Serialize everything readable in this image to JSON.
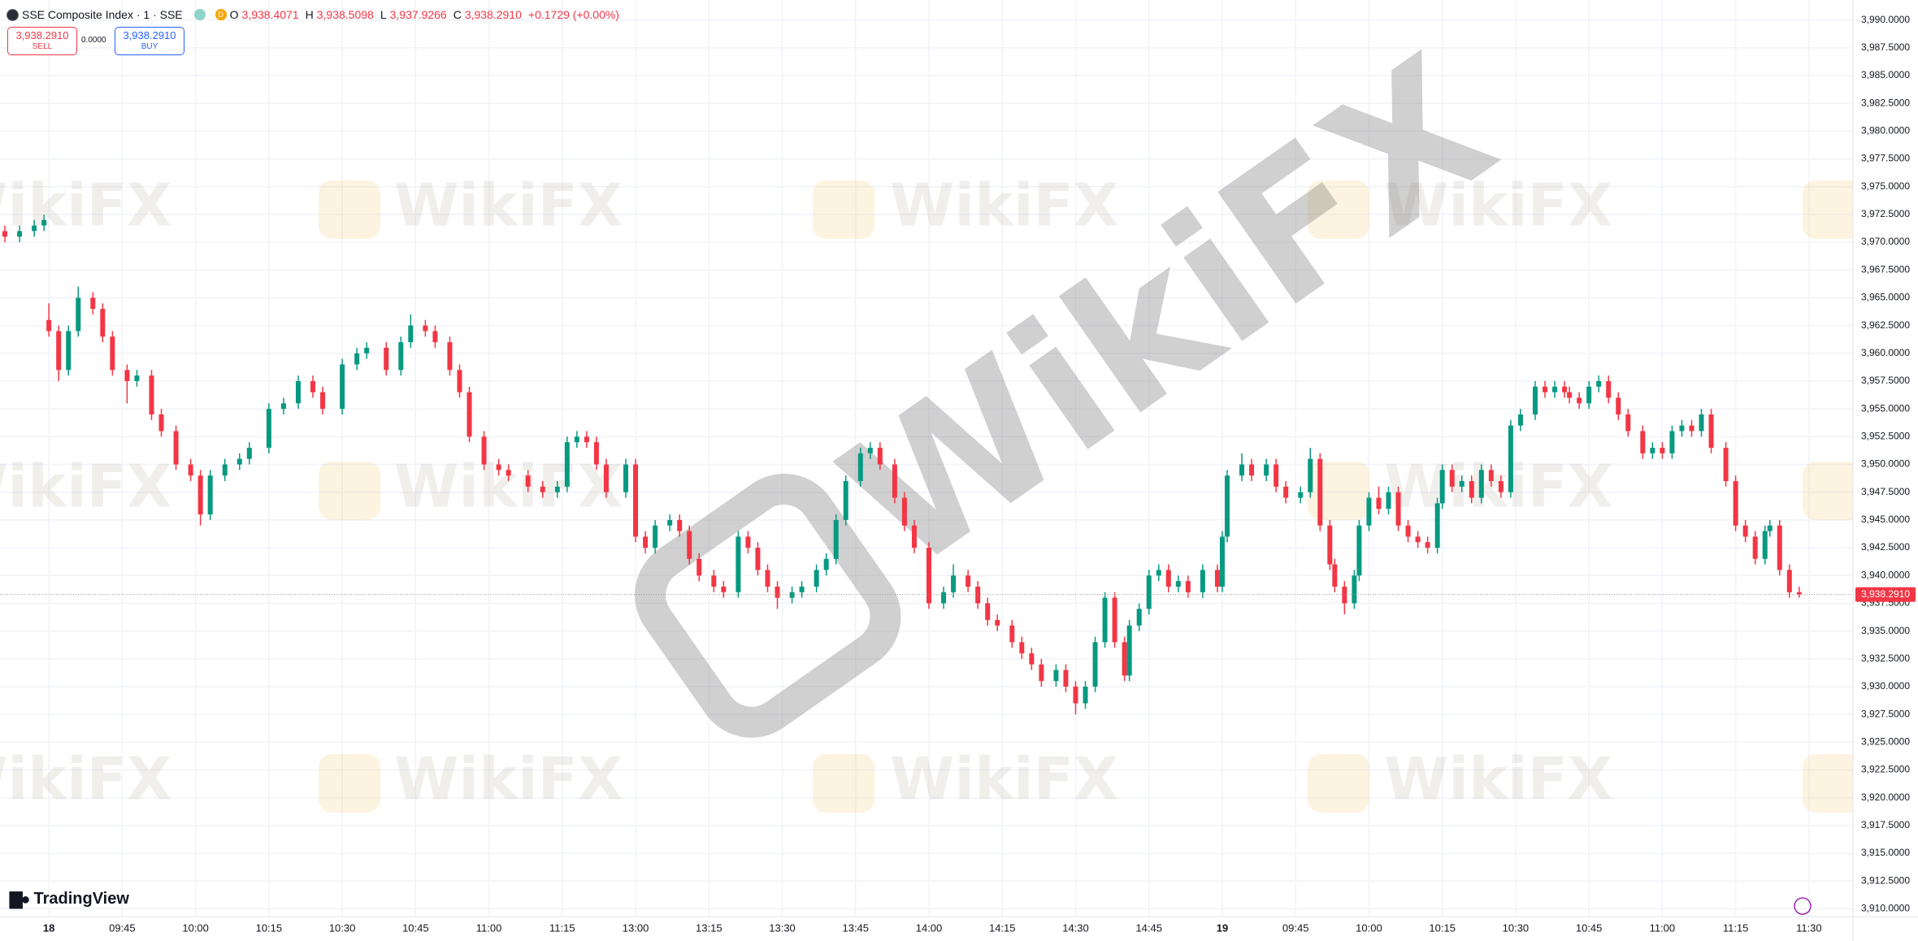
{
  "header": {
    "symbol": "SSE Composite Index · 1 · SSE",
    "badge": "D",
    "ohlc": [
      {
        "key": "O",
        "text": "3,938.4071"
      },
      {
        "key": "H",
        "text": "3,938.5098"
      },
      {
        "key": "L",
        "text": "3,937.9266"
      },
      {
        "key": "C",
        "text": "3,938.2910"
      }
    ],
    "change": "+0.1729 (+0.00%)"
  },
  "trade": {
    "sell_price": "3,938.2910",
    "sell_label": "SELL",
    "spread": "0.0000",
    "buy_price": "3,938.2910",
    "buy_label": "BUY"
  },
  "brand": "TradingView",
  "watermark": "WikiFX",
  "chart_data": {
    "type": "candlestick",
    "up_color": "#089981",
    "down_color": "#f23645",
    "xlim": [
      -10,
      369
    ],
    "ylim": [
      3909.3,
      3991.8
    ],
    "grid": true,
    "last_price": {
      "value": 3938.291,
      "label": "3,938.2910"
    },
    "xticks": [
      {
        "value": 0,
        "label": "18"
      },
      {
        "value": 15,
        "label": "09:45"
      },
      {
        "value": 30,
        "label": "10:00"
      },
      {
        "value": 45,
        "label": "10:15"
      },
      {
        "value": 60,
        "label": "10:30"
      },
      {
        "value": 75,
        "label": "10:45"
      },
      {
        "value": 90,
        "label": "11:00"
      },
      {
        "value": 105,
        "label": "11:15"
      },
      {
        "value": 120,
        "label": "13:00"
      },
      {
        "value": 135,
        "label": "13:15"
      },
      {
        "value": 150,
        "label": "13:30"
      },
      {
        "value": 165,
        "label": "13:45"
      },
      {
        "value": 180,
        "label": "14:00"
      },
      {
        "value": 195,
        "label": "14:15"
      },
      {
        "value": 210,
        "label": "14:30"
      },
      {
        "value": 225,
        "label": "14:45"
      },
      {
        "value": 240,
        "label": "19"
      },
      {
        "value": 255,
        "label": "09:45"
      },
      {
        "value": 270,
        "label": "10:00"
      },
      {
        "value": 285,
        "label": "10:15"
      },
      {
        "value": 300,
        "label": "10:30"
      },
      {
        "value": 315,
        "label": "10:45"
      },
      {
        "value": 330,
        "label": "11:00"
      },
      {
        "value": 345,
        "label": "11:15"
      },
      {
        "value": 360,
        "label": "11:30"
      }
    ],
    "yticks": [
      {
        "value": 3910,
        "label": "3,910.0000"
      },
      {
        "value": 3912.5,
        "label": "3,912.5000"
      },
      {
        "value": 3915,
        "label": "3,915.0000"
      },
      {
        "value": 3917.5,
        "label": "3,917.5000"
      },
      {
        "value": 3920,
        "label": "3,920.0000"
      },
      {
        "value": 3922.5,
        "label": "3,922.5000"
      },
      {
        "value": 3925,
        "label": "3,925.0000"
      },
      {
        "value": 3927.5,
        "label": "3,927.5000"
      },
      {
        "value": 3930,
        "label": "3,930.0000"
      },
      {
        "value": 3932.5,
        "label": "3,932.5000"
      },
      {
        "value": 3935,
        "label": "3,935.0000"
      },
      {
        "value": 3937.5,
        "label": "3,937.5000"
      },
      {
        "value": 3940,
        "label": "3,940.0000"
      },
      {
        "value": 3942.5,
        "label": "3,942.5000"
      },
      {
        "value": 3945,
        "label": "3,945.0000"
      },
      {
        "value": 3947.5,
        "label": "3,947.5000"
      },
      {
        "value": 3950,
        "label": "3,950.0000"
      },
      {
        "value": 3952.5,
        "label": "3,952.5000"
      },
      {
        "value": 3955,
        "label": "3,955.0000"
      },
      {
        "value": 3957.5,
        "label": "3,957.5000"
      },
      {
        "value": 3960,
        "label": "3,960.0000"
      },
      {
        "value": 3962.5,
        "label": "3,962.5000"
      },
      {
        "value": 3965,
        "label": "3,965.0000"
      },
      {
        "value": 3967.5,
        "label": "3,967.5000"
      },
      {
        "value": 3970,
        "label": "3,970.0000"
      },
      {
        "value": 3972.5,
        "label": "3,972.5000"
      },
      {
        "value": 3975,
        "label": "3,975.0000"
      },
      {
        "value": 3977.5,
        "label": "3,977.5000"
      },
      {
        "value": 3980,
        "label": "3,980.0000"
      },
      {
        "value": 3982.5,
        "label": "3,982.5000"
      },
      {
        "value": 3985,
        "label": "3,985.0000"
      },
      {
        "value": 3987.5,
        "label": "3,987.5000"
      },
      {
        "value": 3990,
        "label": "3,990.0000"
      }
    ],
    "candles": [
      [
        -9,
        3971,
        3971.5,
        3970,
        3970.5
      ],
      [
        -6,
        3970.5,
        3971.5,
        3970,
        3971
      ],
      [
        -3,
        3971,
        3972,
        3970.5,
        3971.5
      ],
      [
        -1,
        3971.5,
        3972.5,
        3971,
        3972
      ],
      [
        0,
        3963,
        3964.5,
        3961.5,
        3962
      ],
      [
        2,
        3962,
        3962.5,
        3957.5,
        3958.5
      ],
      [
        4,
        3958.5,
        3962.5,
        3958,
        3962
      ],
      [
        6,
        3962,
        3966,
        3961.5,
        3965
      ],
      [
        9,
        3965,
        3965.5,
        3963.5,
        3964
      ],
      [
        11,
        3964,
        3964.5,
        3961,
        3961.5
      ],
      [
        13,
        3961.5,
        3962,
        3958,
        3958.5
      ],
      [
        16,
        3958.5,
        3959,
        3955.5,
        3957.5
      ],
      [
        18,
        3957.5,
        3958.5,
        3957,
        3958
      ],
      [
        21,
        3958,
        3958.5,
        3954,
        3954.5
      ],
      [
        23,
        3954.5,
        3955,
        3952.5,
        3953
      ],
      [
        26,
        3953,
        3953.5,
        3949.5,
        3950
      ],
      [
        29,
        3950,
        3950.5,
        3948.5,
        3949
      ],
      [
        31,
        3949,
        3949.5,
        3944.5,
        3945.5
      ],
      [
        33,
        3945.5,
        3949.5,
        3945,
        3949
      ],
      [
        36,
        3949,
        3950.5,
        3948.5,
        3950
      ],
      [
        39,
        3950,
        3951,
        3949.5,
        3950.5
      ],
      [
        41,
        3950.5,
        3952,
        3950,
        3951.5
      ],
      [
        45,
        3951.5,
        3955.5,
        3951,
        3955
      ],
      [
        48,
        3955,
        3956,
        3954.5,
        3955.5
      ],
      [
        51,
        3955.5,
        3958,
        3955,
        3957.5
      ],
      [
        54,
        3957.5,
        3958,
        3956,
        3956.5
      ],
      [
        56,
        3956.5,
        3957,
        3954.5,
        3955
      ],
      [
        60,
        3955,
        3959.5,
        3954.5,
        3959
      ],
      [
        63,
        3959,
        3960.5,
        3958.5,
        3960
      ],
      [
        65,
        3960,
        3961,
        3959.5,
        3960.5
      ],
      [
        69,
        3960.5,
        3961,
        3958,
        3958.5
      ],
      [
        72,
        3958.5,
        3961.5,
        3958,
        3961
      ],
      [
        74,
        3961,
        3963.5,
        3960.5,
        3962.5
      ],
      [
        77,
        3962.5,
        3963,
        3961.5,
        3962
      ],
      [
        79,
        3962,
        3962.5,
        3960.5,
        3961
      ],
      [
        82,
        3961,
        3961.5,
        3958,
        3958.5
      ],
      [
        84,
        3958.5,
        3959,
        3956,
        3956.5
      ],
      [
        86,
        3956.5,
        3957,
        3952,
        3952.5
      ],
      [
        89,
        3952.5,
        3953,
        3949.5,
        3950
      ],
      [
        92,
        3950,
        3950.5,
        3949,
        3949.5
      ],
      [
        94,
        3949.5,
        3950,
        3948.5,
        3949
      ],
      [
        98,
        3949,
        3949.5,
        3947.5,
        3948
      ],
      [
        101,
        3948,
        3948.5,
        3947,
        3947.5
      ],
      [
        104,
        3947.5,
        3948.5,
        3947,
        3948
      ],
      [
        106,
        3948,
        3952.5,
        3947.5,
        3952
      ],
      [
        108,
        3952,
        3953,
        3951.5,
        3952.5
      ],
      [
        110,
        3952.5,
        3953,
        3951.5,
        3952
      ],
      [
        112,
        3952,
        3952.5,
        3949.5,
        3950
      ],
      [
        114,
        3950,
        3950.5,
        3947,
        3947.5
      ],
      [
        118,
        3947.5,
        3950.5,
        3947,
        3950
      ],
      [
        120,
        3950,
        3950.5,
        3943,
        3943.5
      ],
      [
        122,
        3943.5,
        3944,
        3942,
        3942.5
      ],
      [
        124,
        3942.5,
        3945,
        3942,
        3944.5
      ],
      [
        127,
        3944.5,
        3945.5,
        3944,
        3945
      ],
      [
        129,
        3945,
        3945.5,
        3943.5,
        3944
      ],
      [
        131,
        3944,
        3944.5,
        3941,
        3941.5
      ],
      [
        133,
        3941.5,
        3942,
        3939.5,
        3940
      ],
      [
        136,
        3940,
        3940.5,
        3938.5,
        3939
      ],
      [
        138,
        3939,
        3939.5,
        3938,
        3938.5
      ],
      [
        141,
        3938.5,
        3944,
        3938,
        3943.5
      ],
      [
        143,
        3943.5,
        3944,
        3942,
        3942.5
      ],
      [
        145,
        3942.5,
        3943,
        3940,
        3940.5
      ],
      [
        147,
        3940.5,
        3941,
        3938.5,
        3939
      ],
      [
        149,
        3939,
        3939.5,
        3937,
        3938
      ],
      [
        152,
        3938,
        3939,
        3937.5,
        3938.5
      ],
      [
        154,
        3938.5,
        3939.5,
        3938,
        3939
      ],
      [
        157,
        3939,
        3941,
        3938.5,
        3940.5
      ],
      [
        159,
        3940.5,
        3942,
        3940,
        3941.5
      ],
      [
        161,
        3941.5,
        3945.5,
        3941,
        3945
      ],
      [
        163,
        3945,
        3949,
        3944.5,
        3948.5
      ],
      [
        166,
        3948.5,
        3951.5,
        3948,
        3951
      ],
      [
        168,
        3951,
        3952,
        3950.5,
        3951.5
      ],
      [
        170,
        3951.5,
        3952,
        3949.5,
        3950
      ],
      [
        173,
        3950,
        3950.5,
        3946.5,
        3947
      ],
      [
        175,
        3947,
        3947.5,
        3944,
        3944.5
      ],
      [
        177,
        3944.5,
        3945,
        3942,
        3942.5
      ],
      [
        180,
        3942.5,
        3943,
        3937,
        3937.5
      ],
      [
        183,
        3937.5,
        3939,
        3937,
        3938.5
      ],
      [
        185,
        3938.5,
        3941,
        3938,
        3940
      ],
      [
        188,
        3940,
        3940.5,
        3938.5,
        3939
      ],
      [
        190,
        3939,
        3939.5,
        3937,
        3937.5
      ],
      [
        192,
        3937.5,
        3938,
        3935.5,
        3936
      ],
      [
        194,
        3936,
        3936.5,
        3935,
        3935.5
      ],
      [
        197,
        3935.5,
        3936,
        3933.5,
        3934
      ],
      [
        199,
        3934,
        3934.5,
        3932.5,
        3933
      ],
      [
        201,
        3933,
        3933.5,
        3931.5,
        3932
      ],
      [
        203,
        3932,
        3932.5,
        3930,
        3930.5
      ],
      [
        206,
        3930.5,
        3932,
        3930,
        3931.5
      ],
      [
        208,
        3931.5,
        3932,
        3929.5,
        3930
      ],
      [
        210,
        3930,
        3930.5,
        3927.5,
        3928.5
      ],
      [
        212,
        3928.5,
        3930.5,
        3928,
        3930
      ],
      [
        214,
        3930,
        3934.5,
        3929.5,
        3934
      ],
      [
        216,
        3934,
        3938.5,
        3933.5,
        3938
      ],
      [
        218,
        3938,
        3938.5,
        3933.5,
        3934
      ],
      [
        220,
        3934,
        3934.5,
        3930.5,
        3931
      ],
      [
        221,
        3931,
        3936,
        3930.5,
        3935.5
      ],
      [
        223,
        3935.5,
        3937.5,
        3935,
        3937
      ],
      [
        225,
        3937,
        3940.5,
        3936.5,
        3940
      ],
      [
        227,
        3940,
        3941,
        3939.5,
        3940.5
      ],
      [
        229,
        3940.5,
        3941,
        3938.5,
        3939
      ],
      [
        231,
        3939,
        3940,
        3938.5,
        3939.5
      ],
      [
        233,
        3939.5,
        3940,
        3938,
        3938.5
      ],
      [
        236,
        3938.5,
        3941,
        3938,
        3940.5
      ],
      [
        239,
        3940.5,
        3941,
        3938.5,
        3939
      ],
      [
        240,
        3939,
        3944,
        3938.5,
        3943.5
      ],
      [
        241,
        3943.5,
        3949.5,
        3943,
        3949
      ],
      [
        244,
        3949,
        3951,
        3948.5,
        3950
      ],
      [
        246,
        3950,
        3950.5,
        3948.5,
        3949
      ],
      [
        249,
        3949,
        3950.5,
        3948.5,
        3950
      ],
      [
        251,
        3950,
        3950.5,
        3947.5,
        3948
      ],
      [
        253,
        3948,
        3948.5,
        3946.5,
        3947
      ],
      [
        256,
        3947,
        3948,
        3946.5,
        3947.5
      ],
      [
        258,
        3947.5,
        3951.5,
        3947,
        3950.5
      ],
      [
        260,
        3950.5,
        3951,
        3944,
        3944.5
      ],
      [
        262,
        3944.5,
        3945,
        3940.5,
        3941
      ],
      [
        263,
        3941,
        3941.5,
        3938.5,
        3939
      ],
      [
        265,
        3939,
        3939.5,
        3936.5,
        3937.5
      ],
      [
        267,
        3937.5,
        3940.5,
        3937,
        3940
      ],
      [
        268,
        3940,
        3945,
        3939.5,
        3944.5
      ],
      [
        270,
        3944.5,
        3947.5,
        3944,
        3947
      ],
      [
        272,
        3947,
        3948,
        3945.5,
        3946
      ],
      [
        274,
        3946,
        3948,
        3945.5,
        3947.5
      ],
      [
        276,
        3947.5,
        3948,
        3944,
        3944.5
      ],
      [
        278,
        3944.5,
        3945,
        3943,
        3943.5
      ],
      [
        280,
        3943.5,
        3944,
        3942.5,
        3943
      ],
      [
        282,
        3943,
        3943.5,
        3942,
        3942.5
      ],
      [
        284,
        3942.5,
        3947,
        3942,
        3946.5
      ],
      [
        285,
        3946.5,
        3950,
        3946,
        3949.5
      ],
      [
        287,
        3949.5,
        3950,
        3947.5,
        3948
      ],
      [
        289,
        3948,
        3949,
        3947.5,
        3948.5
      ],
      [
        291,
        3948.5,
        3949,
        3946.5,
        3947
      ],
      [
        293,
        3947,
        3950,
        3946.5,
        3949.5
      ],
      [
        295,
        3949.5,
        3950,
        3948,
        3948.5
      ],
      [
        297,
        3948.5,
        3949,
        3947,
        3947.5
      ],
      [
        299,
        3947.5,
        3954,
        3947,
        3953.5
      ],
      [
        301,
        3953.5,
        3955,
        3953,
        3954.5
      ],
      [
        304,
        3954.5,
        3957.5,
        3954,
        3957
      ],
      [
        306,
        3957,
        3957.5,
        3956,
        3956.5
      ],
      [
        308,
        3956.5,
        3957.5,
        3956,
        3957
      ],
      [
        310,
        3957,
        3957.5,
        3956,
        3956.5
      ],
      [
        311,
        3956.5,
        3957,
        3955.5,
        3956
      ],
      [
        313,
        3956,
        3956.5,
        3955,
        3955.5
      ],
      [
        315,
        3955.5,
        3957.5,
        3955,
        3957
      ],
      [
        317,
        3957,
        3958,
        3956.5,
        3957.5
      ],
      [
        319,
        3957.5,
        3958,
        3955.5,
        3956
      ],
      [
        321,
        3956,
        3956.5,
        3954,
        3954.5
      ],
      [
        323,
        3954.5,
        3955,
        3952.5,
        3953
      ],
      [
        326,
        3953,
        3953.5,
        3950.5,
        3951
      ],
      [
        328,
        3951,
        3952,
        3950.5,
        3951.5
      ],
      [
        330,
        3951.5,
        3952,
        3950.5,
        3951
      ],
      [
        332,
        3951,
        3953.5,
        3950.5,
        3953
      ],
      [
        334,
        3953,
        3954,
        3952.5,
        3953.5
      ],
      [
        336,
        3953.5,
        3954,
        3952.5,
        3953
      ],
      [
        338,
        3953,
        3955,
        3952.5,
        3954.5
      ],
      [
        340,
        3954.5,
        3955,
        3951,
        3951.5
      ],
      [
        343,
        3951.5,
        3952,
        3948,
        3948.5
      ],
      [
        345,
        3948.5,
        3949,
        3944,
        3944.5
      ],
      [
        347,
        3944.5,
        3945,
        3943,
        3943.5
      ],
      [
        349,
        3943.5,
        3944,
        3941,
        3941.5
      ],
      [
        351,
        3941.5,
        3944.5,
        3941,
        3944
      ],
      [
        352,
        3944,
        3945,
        3943.5,
        3944.5
      ],
      [
        354,
        3944.5,
        3945,
        3940,
        3940.5
      ],
      [
        356,
        3940.5,
        3941,
        3938,
        3938.5
      ],
      [
        358,
        3938.5,
        3939,
        3938,
        3938.3
      ]
    ]
  }
}
